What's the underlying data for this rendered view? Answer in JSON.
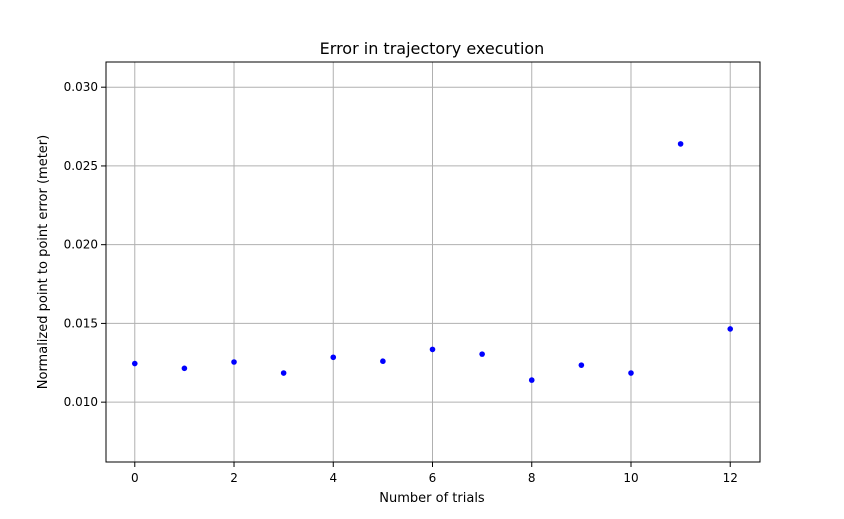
{
  "chart_data": {
    "type": "scatter",
    "title": "Error in trajectory execution",
    "xlabel": "Number of trials",
    "ylabel": "Normalized point to point error (meter)",
    "xlim": [
      -0.58,
      12.6
    ],
    "ylim": [
      0.0062,
      0.0316
    ],
    "x_ticks": [
      0,
      2,
      4,
      6,
      8,
      10,
      12
    ],
    "x_tick_labels": [
      "0",
      "2",
      "4",
      "6",
      "8",
      "10",
      "12"
    ],
    "y_ticks": [
      0.01,
      0.015,
      0.02,
      0.025,
      0.03
    ],
    "y_tick_labels": [
      "0.010",
      "0.015",
      "0.020",
      "0.025",
      "0.030"
    ],
    "grid": true,
    "series": [
      {
        "color": "#0000ff",
        "marker": "circle",
        "x": [
          0,
          1,
          2,
          3,
          4,
          5,
          6,
          7,
          8,
          9,
          10,
          11,
          12
        ],
        "y": [
          0.01245,
          0.01215,
          0.01255,
          0.01185,
          0.01285,
          0.0126,
          0.01335,
          0.01305,
          0.0114,
          0.01235,
          0.01185,
          0.0264,
          0.01465
        ]
      }
    ],
    "colors": {
      "grid": "#b0b0b0",
      "axes": "#000000",
      "background": "#ffffff"
    }
  }
}
